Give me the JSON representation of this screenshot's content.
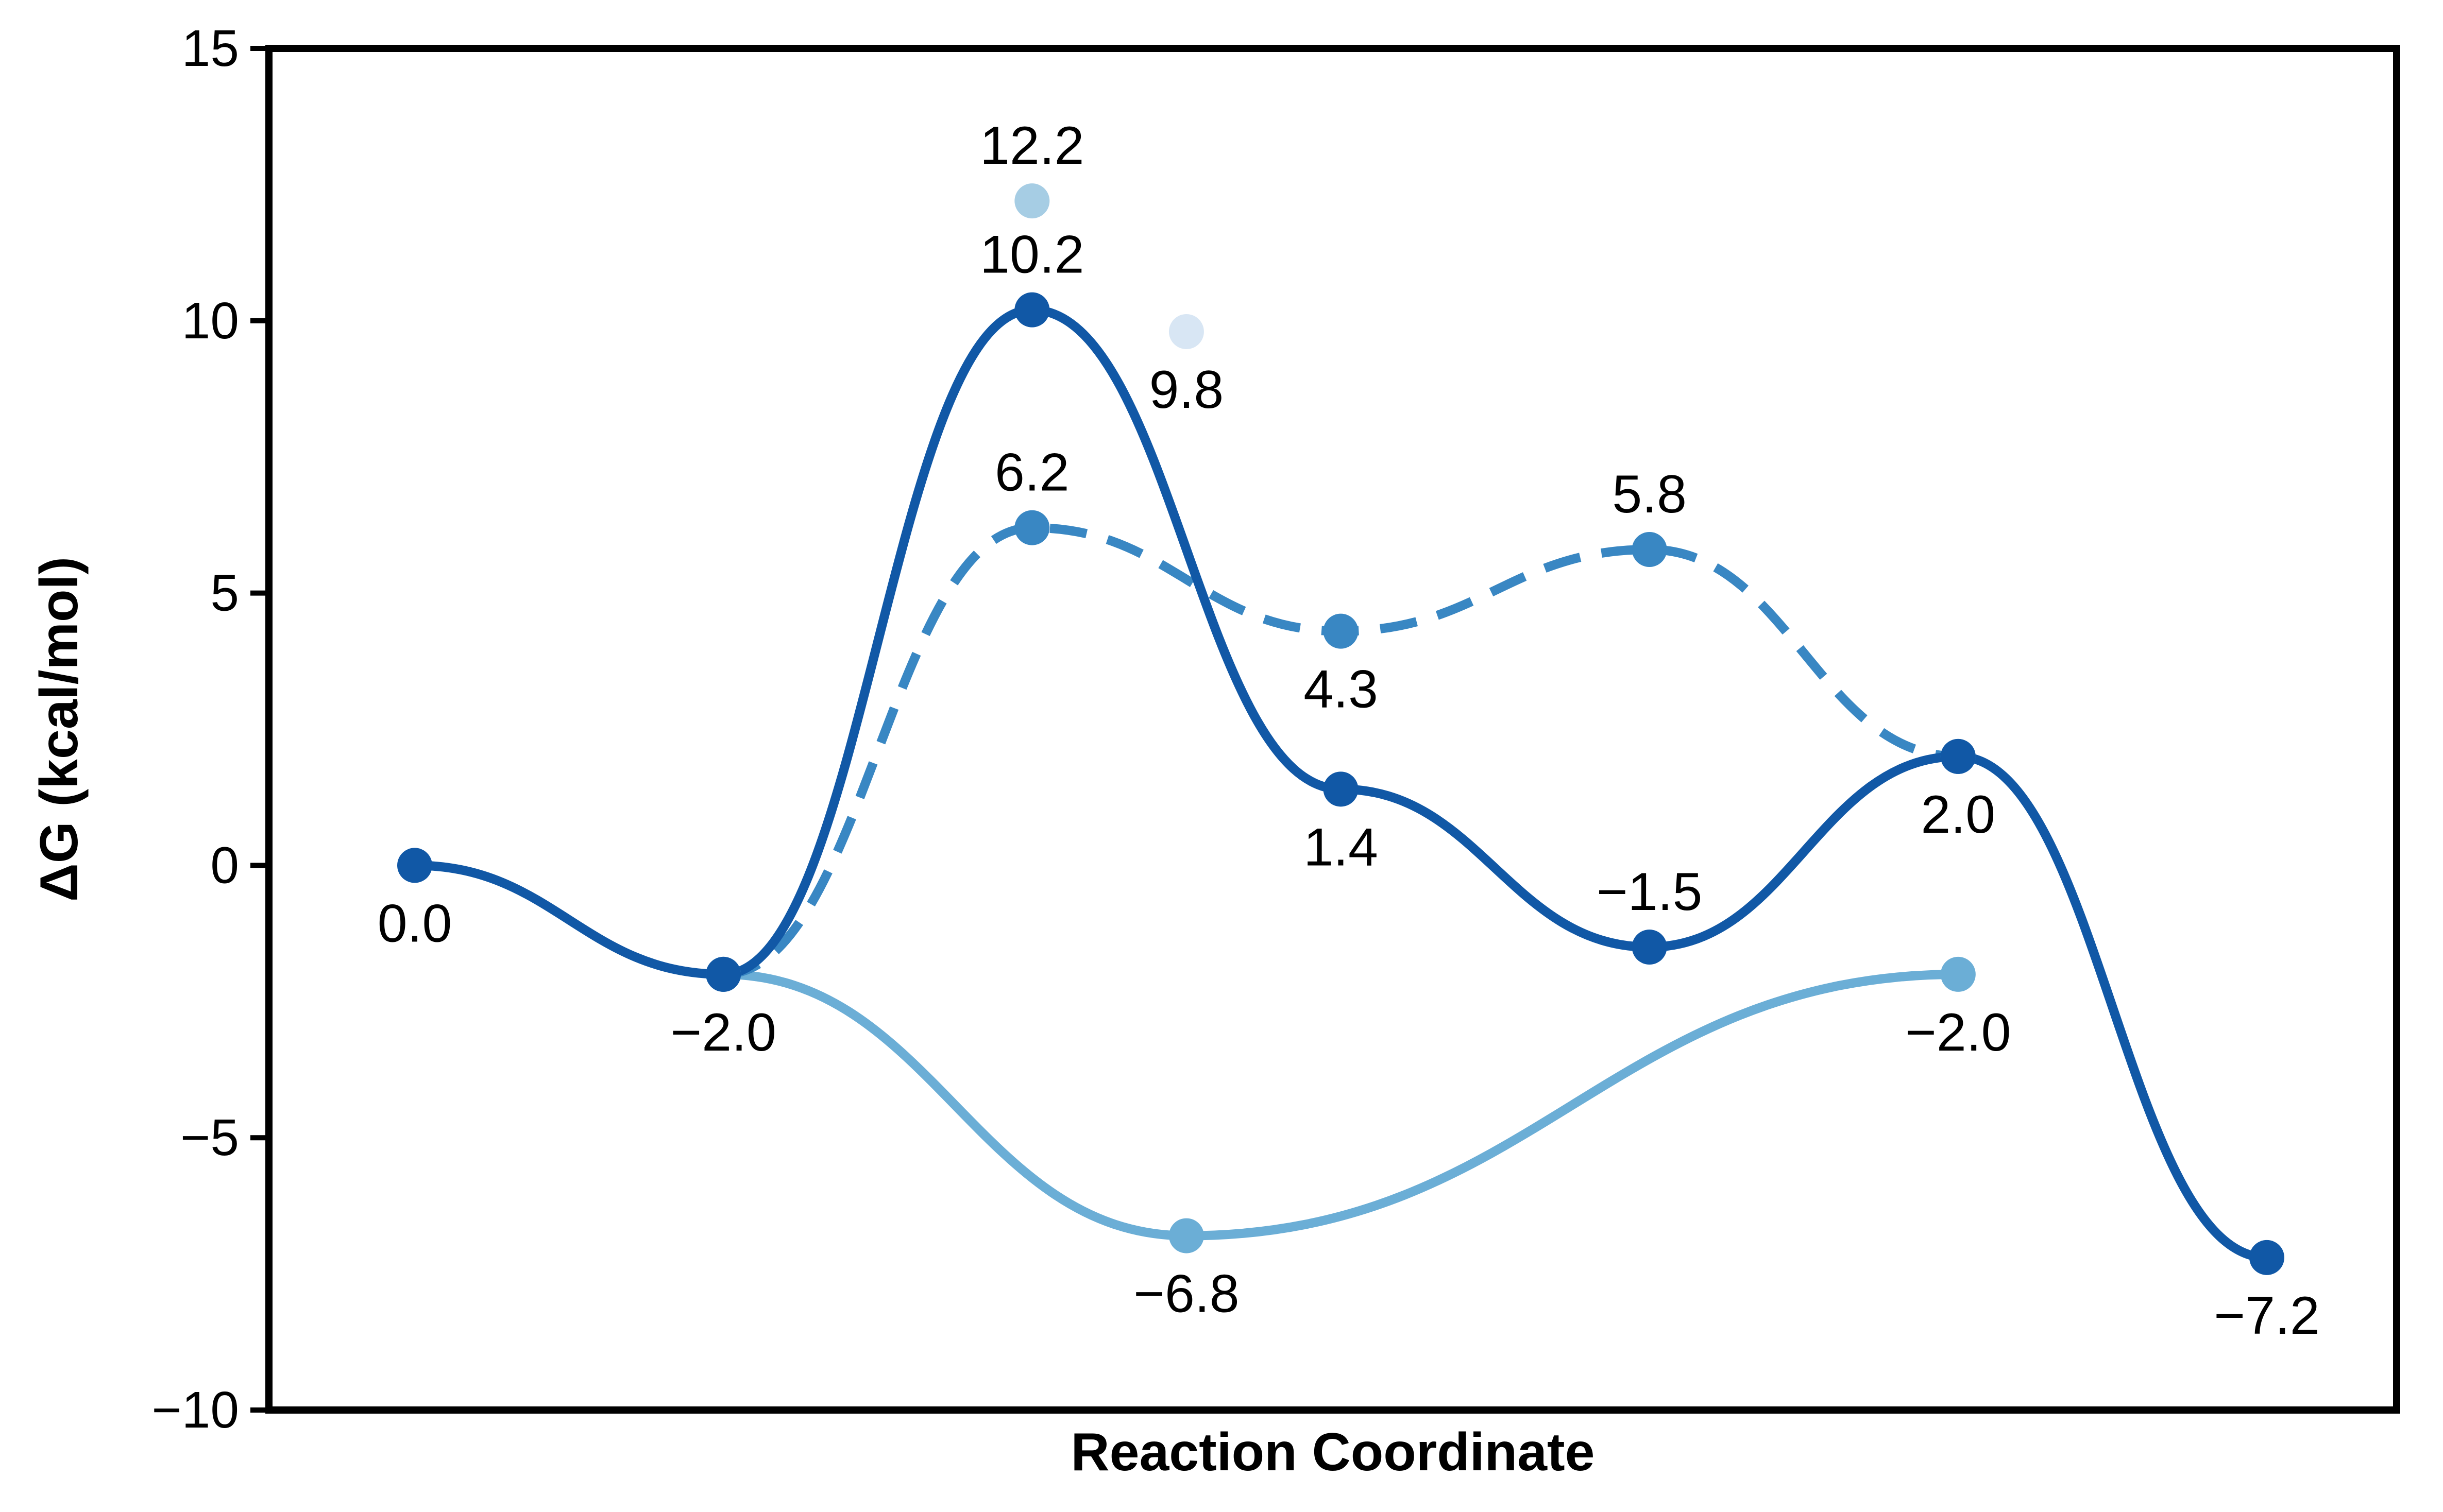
{
  "chart_data": {
    "type": "line",
    "title": "",
    "xlabel": "Reaction Coordinate",
    "ylabel": "ΔG (kcal/mol)",
    "xlim": [
      0,
      6
    ],
    "ylim": [
      -10,
      15
    ],
    "yticks": [
      15,
      10,
      5,
      0,
      -5,
      -10
    ],
    "ytick_labels": [
      "15",
      "10",
      "5",
      "0",
      "−5",
      "−10"
    ],
    "legend": "none",
    "grid": false,
    "series": [
      {
        "color": "#1158a6",
        "line_style": "solid",
        "points": [
          {
            "x": 0,
            "y": 0.0,
            "label": "0.0",
            "label_pos": "below"
          },
          {
            "x": 1,
            "y": -2.0,
            "label": "−2.0",
            "label_pos": "below"
          },
          {
            "x": 2,
            "y": 10.2,
            "label": "10.2",
            "label_pos": "above"
          },
          {
            "x": 3,
            "y": 1.4,
            "label": "1.4",
            "label_pos": "below"
          },
          {
            "x": 4,
            "y": -1.5,
            "label": "−1.5",
            "label_pos": "above"
          },
          {
            "x": 5,
            "y": 2.0,
            "label": "2.0",
            "label_pos": "below"
          },
          {
            "x": 6,
            "y": -7.2,
            "label": "−7.2",
            "label_pos": "below"
          }
        ]
      },
      {
        "color": "#3987c3",
        "line_style": "dashed",
        "points": [
          {
            "x": 1,
            "y": -2.0,
            "label": "",
            "label_pos": "none"
          },
          {
            "x": 2,
            "y": 6.2,
            "label": "6.2",
            "label_pos": "above"
          },
          {
            "x": 3,
            "y": 4.3,
            "label": "4.3",
            "label_pos": "below"
          },
          {
            "x": 4,
            "y": 5.8,
            "label": "5.8",
            "label_pos": "above"
          },
          {
            "x": 5,
            "y": 2.0,
            "label": "",
            "label_pos": "none"
          }
        ]
      },
      {
        "color": "#6baed6",
        "line_style": "solid",
        "points": [
          {
            "x": 1,
            "y": -2.0,
            "label": "",
            "label_pos": "none"
          },
          {
            "x": 2.5,
            "y": -6.8,
            "label": "−6.8",
            "label_pos": "below"
          },
          {
            "x": 5,
            "y": -2.0,
            "label": "−2.0",
            "label_pos": "below"
          }
        ]
      },
      {
        "color": "#a6cde4",
        "line_style": "none",
        "points": [
          {
            "x": 2,
            "y": 12.2,
            "label": "12.2",
            "label_pos": "above"
          }
        ]
      },
      {
        "color": "#d8e6f4",
        "line_style": "none",
        "points": [
          {
            "x": 2.5,
            "y": 9.8,
            "label": "9.8",
            "label_pos": "below"
          }
        ]
      }
    ]
  }
}
